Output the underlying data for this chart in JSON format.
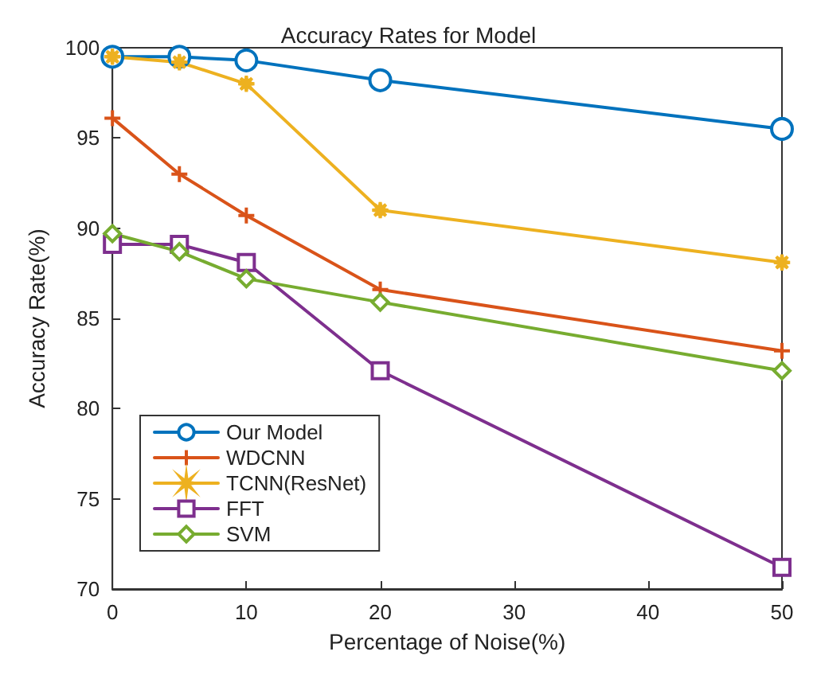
{
  "chart_data": {
    "type": "line",
    "title": "Accuracy Rates for Model",
    "xlabel": "Percentage of Noise(%)",
    "ylabel": "Accuracy Rate(%)",
    "x": [
      0,
      5,
      10,
      20,
      50
    ],
    "series": [
      {
        "name": "Our Model",
        "color": "#0072bd",
        "marker": "circle",
        "values": [
          99.5,
          99.5,
          99.3,
          98.2,
          95.5
        ]
      },
      {
        "name": "WDCNN",
        "color": "#d95319",
        "marker": "cross",
        "values": [
          96.1,
          93.0,
          90.7,
          86.6,
          83.2
        ]
      },
      {
        "name": "TCNN(ResNet)",
        "color": "#edb120",
        "marker": "star",
        "values": [
          99.5,
          99.2,
          98.0,
          91.0,
          88.1
        ]
      },
      {
        "name": "FFT",
        "color": "#7e2f8e",
        "marker": "square",
        "values": [
          89.1,
          89.1,
          88.1,
          82.1,
          71.2
        ]
      },
      {
        "name": "SVM",
        "color": "#77ac30",
        "marker": "diamond",
        "values": [
          89.7,
          88.7,
          87.2,
          85.9,
          82.1
        ]
      }
    ],
    "xlim": [
      0,
      50
    ],
    "xticks": [
      0,
      10,
      20,
      30,
      40,
      50
    ],
    "ylim": [
      70,
      100
    ],
    "yticks": [
      70,
      75,
      80,
      85,
      90,
      95,
      100
    ],
    "grid": false,
    "legend": "bottom left",
    "line_style": "solid"
  }
}
